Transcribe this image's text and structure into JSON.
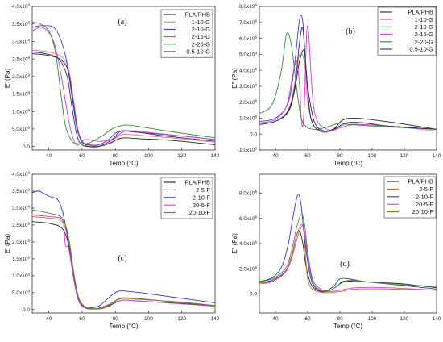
{
  "colors": {
    "PLA/PHB": "#222222",
    "1-10-G": "#e07f73",
    "2-10-G": "#3b3bd6",
    "2-15-G": "#d235d2",
    "2-20-G": "#2e8b2e",
    "0.5-10-G": "#2a2a7a",
    "2-5-F": "#b56a26",
    "2-10-F": "#3030c8",
    "20-5-F": "#d63ed6",
    "20-10-F": "#4a8a2a"
  },
  "chart_data": [
    {
      "panel": "(a)",
      "type": "line",
      "xlabel": "Temp (°C)",
      "ylabel": "E' (Pa)",
      "xlim": [
        30,
        140
      ],
      "ylim": [
        -0.1,
        4.0
      ],
      "y_exponent": "9",
      "xticks": [
        "40",
        "60",
        "80",
        "100",
        "120",
        "140"
      ],
      "yticks": [
        {
          "v": 0.0,
          "label": "0.0"
        },
        {
          "v": 0.5,
          "label": "5.0x10"
        },
        {
          "v": 1.0,
          "label": "1.0x10"
        },
        {
          "v": 1.5,
          "label": "1.5x10"
        },
        {
          "v": 2.0,
          "label": "2.0x10"
        },
        {
          "v": 2.5,
          "label": "2.5x10"
        },
        {
          "v": 3.0,
          "label": "3.0x10"
        },
        {
          "v": 3.5,
          "label": "3.5x10"
        },
        {
          "v": 4.0,
          "label": "4.0x10"
        }
      ],
      "y_exp_on_ticks": "9",
      "series": [
        {
          "name": "PLA/PHB",
          "x": [
            30,
            40,
            48,
            52,
            55,
            58,
            62,
            66,
            72,
            78,
            82,
            86,
            95,
            105,
            120,
            140
          ],
          "y": [
            2.65,
            2.6,
            2.45,
            2.1,
            1.2,
            0.35,
            0.05,
            0.0,
            0.02,
            0.12,
            0.22,
            0.25,
            0.22,
            0.2,
            0.15,
            0.05
          ]
        },
        {
          "name": "1-10-G",
          "x": [
            30,
            40,
            48,
            52,
            55,
            58,
            62,
            66,
            72,
            78,
            82,
            86,
            95,
            105,
            120,
            140
          ],
          "y": [
            2.75,
            2.7,
            2.55,
            2.2,
            1.3,
            0.4,
            0.06,
            0.02,
            0.03,
            0.15,
            0.3,
            0.35,
            0.32,
            0.28,
            0.22,
            0.12
          ]
        },
        {
          "name": "2-10-G",
          "x": [
            30,
            36,
            44,
            50,
            54,
            57,
            60,
            64,
            70,
            76,
            80,
            84,
            90,
            100,
            120,
            140
          ],
          "y": [
            3.4,
            3.45,
            3.35,
            2.6,
            1.4,
            0.5,
            0.12,
            0.05,
            0.05,
            0.2,
            0.38,
            0.45,
            0.42,
            0.38,
            0.3,
            0.2
          ]
        },
        {
          "name": "2-15-G",
          "x": [
            30,
            36,
            42,
            46,
            50,
            53,
            56,
            58,
            62,
            70,
            78,
            84,
            90,
            110,
            140
          ],
          "y": [
            3.3,
            3.4,
            3.1,
            2.4,
            1.3,
            0.5,
            0.08,
            0.05,
            0.2,
            0.15,
            0.2,
            0.4,
            0.45,
            0.35,
            0.2
          ]
        },
        {
          "name": "2-20-G",
          "x": [
            30,
            35,
            40,
            44,
            47,
            50,
            54,
            58,
            64,
            72,
            78,
            84,
            90,
            110,
            140
          ],
          "y": [
            3.55,
            3.5,
            3.3,
            2.7,
            1.6,
            0.6,
            0.15,
            0.08,
            0.1,
            0.3,
            0.5,
            0.6,
            0.6,
            0.45,
            0.25
          ]
        },
        {
          "name": "0.5-10-G",
          "x": [
            30,
            38,
            46,
            51,
            54,
            57,
            60,
            64,
            70,
            78,
            82,
            86,
            95,
            110,
            140
          ],
          "y": [
            2.7,
            2.65,
            2.5,
            2.0,
            1.1,
            0.3,
            0.05,
            0.0,
            0.0,
            0.2,
            0.4,
            0.45,
            0.4,
            0.3,
            0.15
          ]
        }
      ],
      "legend": "top-right"
    },
    {
      "panel": "(b)",
      "type": "line",
      "xlabel": "Temp (°C)",
      "ylabel": "E\" (Pa)",
      "xlim": [
        30,
        140
      ],
      "ylim": [
        -1.0,
        8.0
      ],
      "xticks": [
        "40",
        "60",
        "80",
        "100",
        "120",
        "140"
      ],
      "yticks": [
        {
          "v": -1,
          "label": "-1.0x10"
        },
        {
          "v": 0,
          "label": "0.0"
        },
        {
          "v": 1,
          "label": "1.0x10"
        },
        {
          "v": 2,
          "label": "2.0x10"
        },
        {
          "v": 3,
          "label": "3.0x10"
        },
        {
          "v": 4,
          "label": "4.0x10"
        },
        {
          "v": 5,
          "label": "5.0x10"
        },
        {
          "v": 6,
          "label": "6.0x10"
        },
        {
          "v": 7,
          "label": "7.0x10"
        },
        {
          "v": 8,
          "label": "8.0x10"
        }
      ],
      "y_exp_on_ticks": "8",
      "series": [
        {
          "name": "PLA/PHB",
          "x": [
            30,
            40,
            48,
            52,
            55,
            58,
            60,
            64,
            70,
            76,
            82,
            90,
            100,
            115,
            140
          ],
          "y": [
            0.6,
            0.8,
            1.4,
            2.8,
            4.6,
            5.2,
            3.0,
            0.8,
            0.2,
            0.3,
            0.9,
            1.0,
            0.9,
            0.7,
            0.3
          ]
        },
        {
          "name": "1-10-G",
          "x": [
            30,
            40,
            48,
            52,
            55,
            58,
            60,
            64,
            70,
            78,
            84,
            95,
            110,
            140
          ],
          "y": [
            0.6,
            0.8,
            1.5,
            3.2,
            5.0,
            4.5,
            2.0,
            0.5,
            0.1,
            0.3,
            0.6,
            0.6,
            0.5,
            0.2
          ]
        },
        {
          "name": "2-10-G",
          "x": [
            30,
            40,
            48,
            52,
            55,
            57,
            59,
            62,
            68,
            76,
            84,
            95,
            110,
            140
          ],
          "y": [
            0.8,
            1.0,
            2.0,
            4.5,
            7.2,
            7.0,
            4.0,
            1.0,
            0.2,
            0.3,
            0.7,
            0.7,
            0.5,
            0.3
          ]
        },
        {
          "name": "2-15-G",
          "x": [
            30,
            40,
            47,
            50,
            53,
            55,
            56,
            57,
            58,
            60,
            64,
            72,
            80,
            90,
            110,
            140
          ],
          "y": [
            0.7,
            0.9,
            1.8,
            3.3,
            4.6,
            3.0,
            1.0,
            0.5,
            2.0,
            6.8,
            1.5,
            0.3,
            0.4,
            0.6,
            0.5,
            0.3
          ]
        },
        {
          "name": "2-20-G",
          "x": [
            30,
            36,
            40,
            44,
            47,
            50,
            53,
            56,
            60,
            66,
            74,
            80,
            86,
            100,
            120,
            140
          ],
          "y": [
            1.3,
            1.6,
            2.4,
            4.2,
            6.3,
            5.5,
            3.0,
            1.0,
            0.4,
            0.3,
            0.5,
            0.7,
            0.6,
            0.5,
            0.4,
            0.3
          ]
        },
        {
          "name": "0.5-10-G",
          "x": [
            30,
            40,
            48,
            52,
            55,
            57,
            59,
            62,
            68,
            76,
            84,
            95,
            110,
            140
          ],
          "y": [
            0.6,
            0.8,
            1.5,
            3.0,
            5.8,
            6.6,
            4.0,
            1.0,
            0.2,
            0.3,
            0.7,
            0.7,
            0.5,
            0.3
          ]
        }
      ],
      "legend": "top-right"
    },
    {
      "panel": "(c)",
      "type": "line",
      "xlabel": "Temp (°C)",
      "ylabel": "E' (Pa)",
      "xlim": [
        30,
        140
      ],
      "ylim": [
        -0.1,
        4.0
      ],
      "xticks": [
        "40",
        "60",
        "80",
        "100",
        "120",
        "140"
      ],
      "yticks": [
        {
          "v": 0.0,
          "label": "0.0"
        },
        {
          "v": 0.5,
          "label": "5.0x10"
        },
        {
          "v": 1.0,
          "label": "1.0x10"
        },
        {
          "v": 1.5,
          "label": "1.5x10"
        },
        {
          "v": 2.0,
          "label": "2.0x10"
        },
        {
          "v": 2.5,
          "label": "2.5x10"
        },
        {
          "v": 3.0,
          "label": "3.0x10"
        },
        {
          "v": 3.5,
          "label": "3.5x10"
        },
        {
          "v": 4.0,
          "label": "4.0x10"
        }
      ],
      "y_exp_on_ticks": "9",
      "series": [
        {
          "name": "PLA/PHB",
          "x": [
            30,
            40,
            48,
            52,
            55,
            58,
            62,
            66,
            72,
            78,
            82,
            86,
            95,
            105,
            120,
            140
          ],
          "y": [
            2.6,
            2.55,
            2.4,
            1.9,
            1.0,
            0.3,
            0.05,
            0.02,
            0.03,
            0.15,
            0.25,
            0.28,
            0.25,
            0.22,
            0.18,
            0.1
          ]
        },
        {
          "name": "2-5-F",
          "x": [
            30,
            40,
            48,
            52,
            55,
            58,
            62,
            66,
            72,
            78,
            82,
            86,
            95,
            105,
            120,
            140
          ],
          "y": [
            2.75,
            2.7,
            2.6,
            2.0,
            1.0,
            0.3,
            0.06,
            0.02,
            0.03,
            0.18,
            0.3,
            0.33,
            0.3,
            0.27,
            0.22,
            0.12
          ]
        },
        {
          "name": "2-10-F",
          "x": [
            30,
            34,
            40,
            46,
            50,
            54,
            57,
            60,
            64,
            70,
            76,
            80,
            84,
            95,
            110,
            140
          ],
          "y": [
            3.45,
            3.5,
            3.35,
            3.2,
            2.5,
            1.2,
            0.4,
            0.1,
            0.05,
            0.1,
            0.35,
            0.5,
            0.55,
            0.5,
            0.4,
            0.2
          ]
        },
        {
          "name": "20-5-F",
          "x": [
            30,
            40,
            47,
            49,
            50,
            52,
            55,
            58,
            62,
            68,
            76,
            82,
            86,
            95,
            110,
            140
          ],
          "y": [
            2.8,
            2.75,
            2.7,
            2.5,
            1.9,
            1.8,
            0.9,
            0.25,
            0.05,
            0.02,
            0.15,
            0.25,
            0.28,
            0.25,
            0.2,
            0.1
          ]
        },
        {
          "name": "20-10-F",
          "x": [
            30,
            40,
            48,
            52,
            55,
            58,
            62,
            66,
            72,
            78,
            82,
            86,
            95,
            110,
            140
          ],
          "y": [
            2.95,
            2.85,
            2.7,
            2.1,
            1.1,
            0.35,
            0.08,
            0.03,
            0.05,
            0.2,
            0.32,
            0.35,
            0.32,
            0.25,
            0.12
          ]
        }
      ],
      "legend": "top-right"
    },
    {
      "panel": "(d)",
      "type": "line",
      "xlabel": "Temp (°C)",
      "ylabel": "E\" (Pa)",
      "xlim": [
        30,
        140
      ],
      "ylim": [
        -1.5,
        9.5
      ],
      "xticks": [
        "40",
        "60",
        "80",
        "100",
        "120",
        "140"
      ],
      "yticks": [
        {
          "v": 0,
          "label": "0.0"
        },
        {
          "v": 2,
          "label": "2.0x10"
        },
        {
          "v": 4,
          "label": "4.0x10"
        },
        {
          "v": 6,
          "label": "6.0x10"
        },
        {
          "v": 8,
          "label": "8.0x10"
        }
      ],
      "y_exp_on_ticks": "8",
      "series": [
        {
          "name": "PLA/PHB",
          "x": [
            30,
            38,
            46,
            50,
            53,
            55,
            57,
            59,
            62,
            66,
            72,
            78,
            82,
            90,
            105,
            120,
            140
          ],
          "y": [
            0.9,
            1.1,
            1.8,
            3.0,
            4.6,
            5.0,
            4.0,
            2.2,
            0.8,
            0.3,
            0.2,
            0.6,
            1.0,
            1.0,
            0.9,
            0.8,
            0.5
          ]
        },
        {
          "name": "2-5-F",
          "x": [
            30,
            38,
            46,
            50,
            53,
            55,
            57,
            58,
            59,
            60,
            62,
            66,
            72,
            80,
            90,
            110,
            140
          ],
          "y": [
            0.9,
            1.0,
            1.7,
            2.8,
            4.2,
            5.0,
            5.4,
            4.2,
            2.5,
            1.2,
            0.5,
            0.2,
            0.1,
            0.2,
            0.4,
            0.4,
            0.3
          ]
        },
        {
          "name": "2-10-F",
          "x": [
            30,
            38,
            44,
            48,
            51,
            54,
            56,
            58,
            61,
            64,
            70,
            76,
            80,
            86,
            95,
            110,
            140
          ],
          "y": [
            1.0,
            1.3,
            2.2,
            4.0,
            6.2,
            7.9,
            7.0,
            4.5,
            1.8,
            0.6,
            0.2,
            0.6,
            1.2,
            1.2,
            1.0,
            0.8,
            0.4
          ]
        },
        {
          "name": "20-5-F",
          "x": [
            30,
            38,
            46,
            50,
            53,
            56,
            58,
            60,
            63,
            68,
            74,
            80,
            90,
            110,
            140
          ],
          "y": [
            0.8,
            1.0,
            1.8,
            3.0,
            4.6,
            5.5,
            5.0,
            3.0,
            1.0,
            0.3,
            0.2,
            0.3,
            0.5,
            0.5,
            0.3
          ]
        },
        {
          "name": "20-10-F",
          "x": [
            30,
            38,
            46,
            50,
            53,
            56,
            58,
            60,
            63,
            68,
            74,
            80,
            86,
            95,
            110,
            140
          ],
          "y": [
            1.0,
            1.2,
            2.0,
            3.4,
            5.2,
            6.3,
            5.6,
            3.4,
            1.2,
            0.4,
            0.3,
            0.8,
            1.1,
            1.0,
            0.8,
            0.6
          ]
        }
      ],
      "legend": "top-right"
    }
  ]
}
